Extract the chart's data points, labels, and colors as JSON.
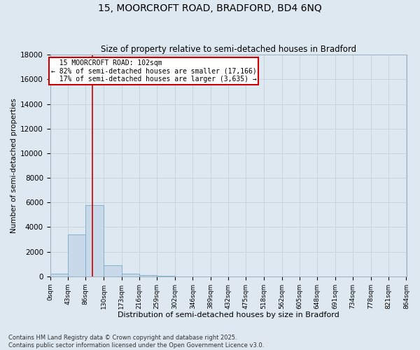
{
  "title1": "15, MOORCROFT ROAD, BRADFORD, BD4 6NQ",
  "title2": "Size of property relative to semi-detached houses in Bradford",
  "xlabel": "Distribution of semi-detached houses by size in Bradford",
  "ylabel": "Number of semi-detached properties",
  "footer1": "Contains HM Land Registry data © Crown copyright and database right 2025.",
  "footer2": "Contains public sector information licensed under the Open Government Licence v3.0.",
  "property_label": "15 MOORCROFT ROAD: 102sqm",
  "pct_smaller": 82,
  "pct_larger": 17,
  "count_smaller": 17166,
  "count_larger": 3635,
  "bin_edges": [
    0,
    43,
    86,
    130,
    173,
    216,
    259,
    302,
    346,
    389,
    432,
    475,
    518,
    562,
    605,
    648,
    691,
    734,
    778,
    821,
    864
  ],
  "bin_labels": [
    "0sqm",
    "43sqm",
    "86sqm",
    "130sqm",
    "173sqm",
    "216sqm",
    "259sqm",
    "302sqm",
    "346sqm",
    "389sqm",
    "432sqm",
    "475sqm",
    "518sqm",
    "562sqm",
    "605sqm",
    "648sqm",
    "691sqm",
    "734sqm",
    "778sqm",
    "821sqm",
    "864sqm"
  ],
  "bar_heights": [
    200,
    3400,
    5800,
    900,
    200,
    100,
    40,
    0,
    0,
    0,
    0,
    0,
    0,
    0,
    0,
    0,
    0,
    0,
    0,
    0
  ],
  "bar_color": "#c8d9ea",
  "bar_edge_color": "#7aaac8",
  "grid_color": "#c8d4de",
  "background_color": "#dde8f0",
  "vline_color": "#cc0000",
  "vline_x": 102,
  "annotation_box_color": "#cc0000",
  "ylim": [
    0,
    18000
  ],
  "yticks": [
    0,
    2000,
    4000,
    6000,
    8000,
    10000,
    12000,
    14000,
    16000,
    18000
  ]
}
